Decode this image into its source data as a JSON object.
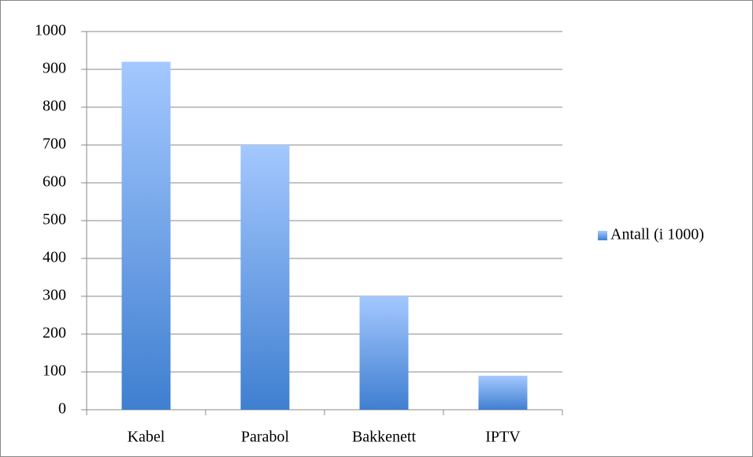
{
  "chart_data": {
    "type": "bar",
    "categories": [
      "Kabel",
      "Parabol",
      "Bakkenett",
      "IPTV"
    ],
    "series": [
      {
        "name": "Antall (i 1000)",
        "color": "#3f7fd0",
        "values": [
          920,
          700,
          300,
          90
        ]
      }
    ],
    "ylim": [
      0,
      1000
    ],
    "yticks": [
      0,
      100,
      200,
      300,
      400,
      500,
      600,
      700,
      800,
      900,
      1000
    ],
    "grid": true,
    "legend": "right"
  }
}
